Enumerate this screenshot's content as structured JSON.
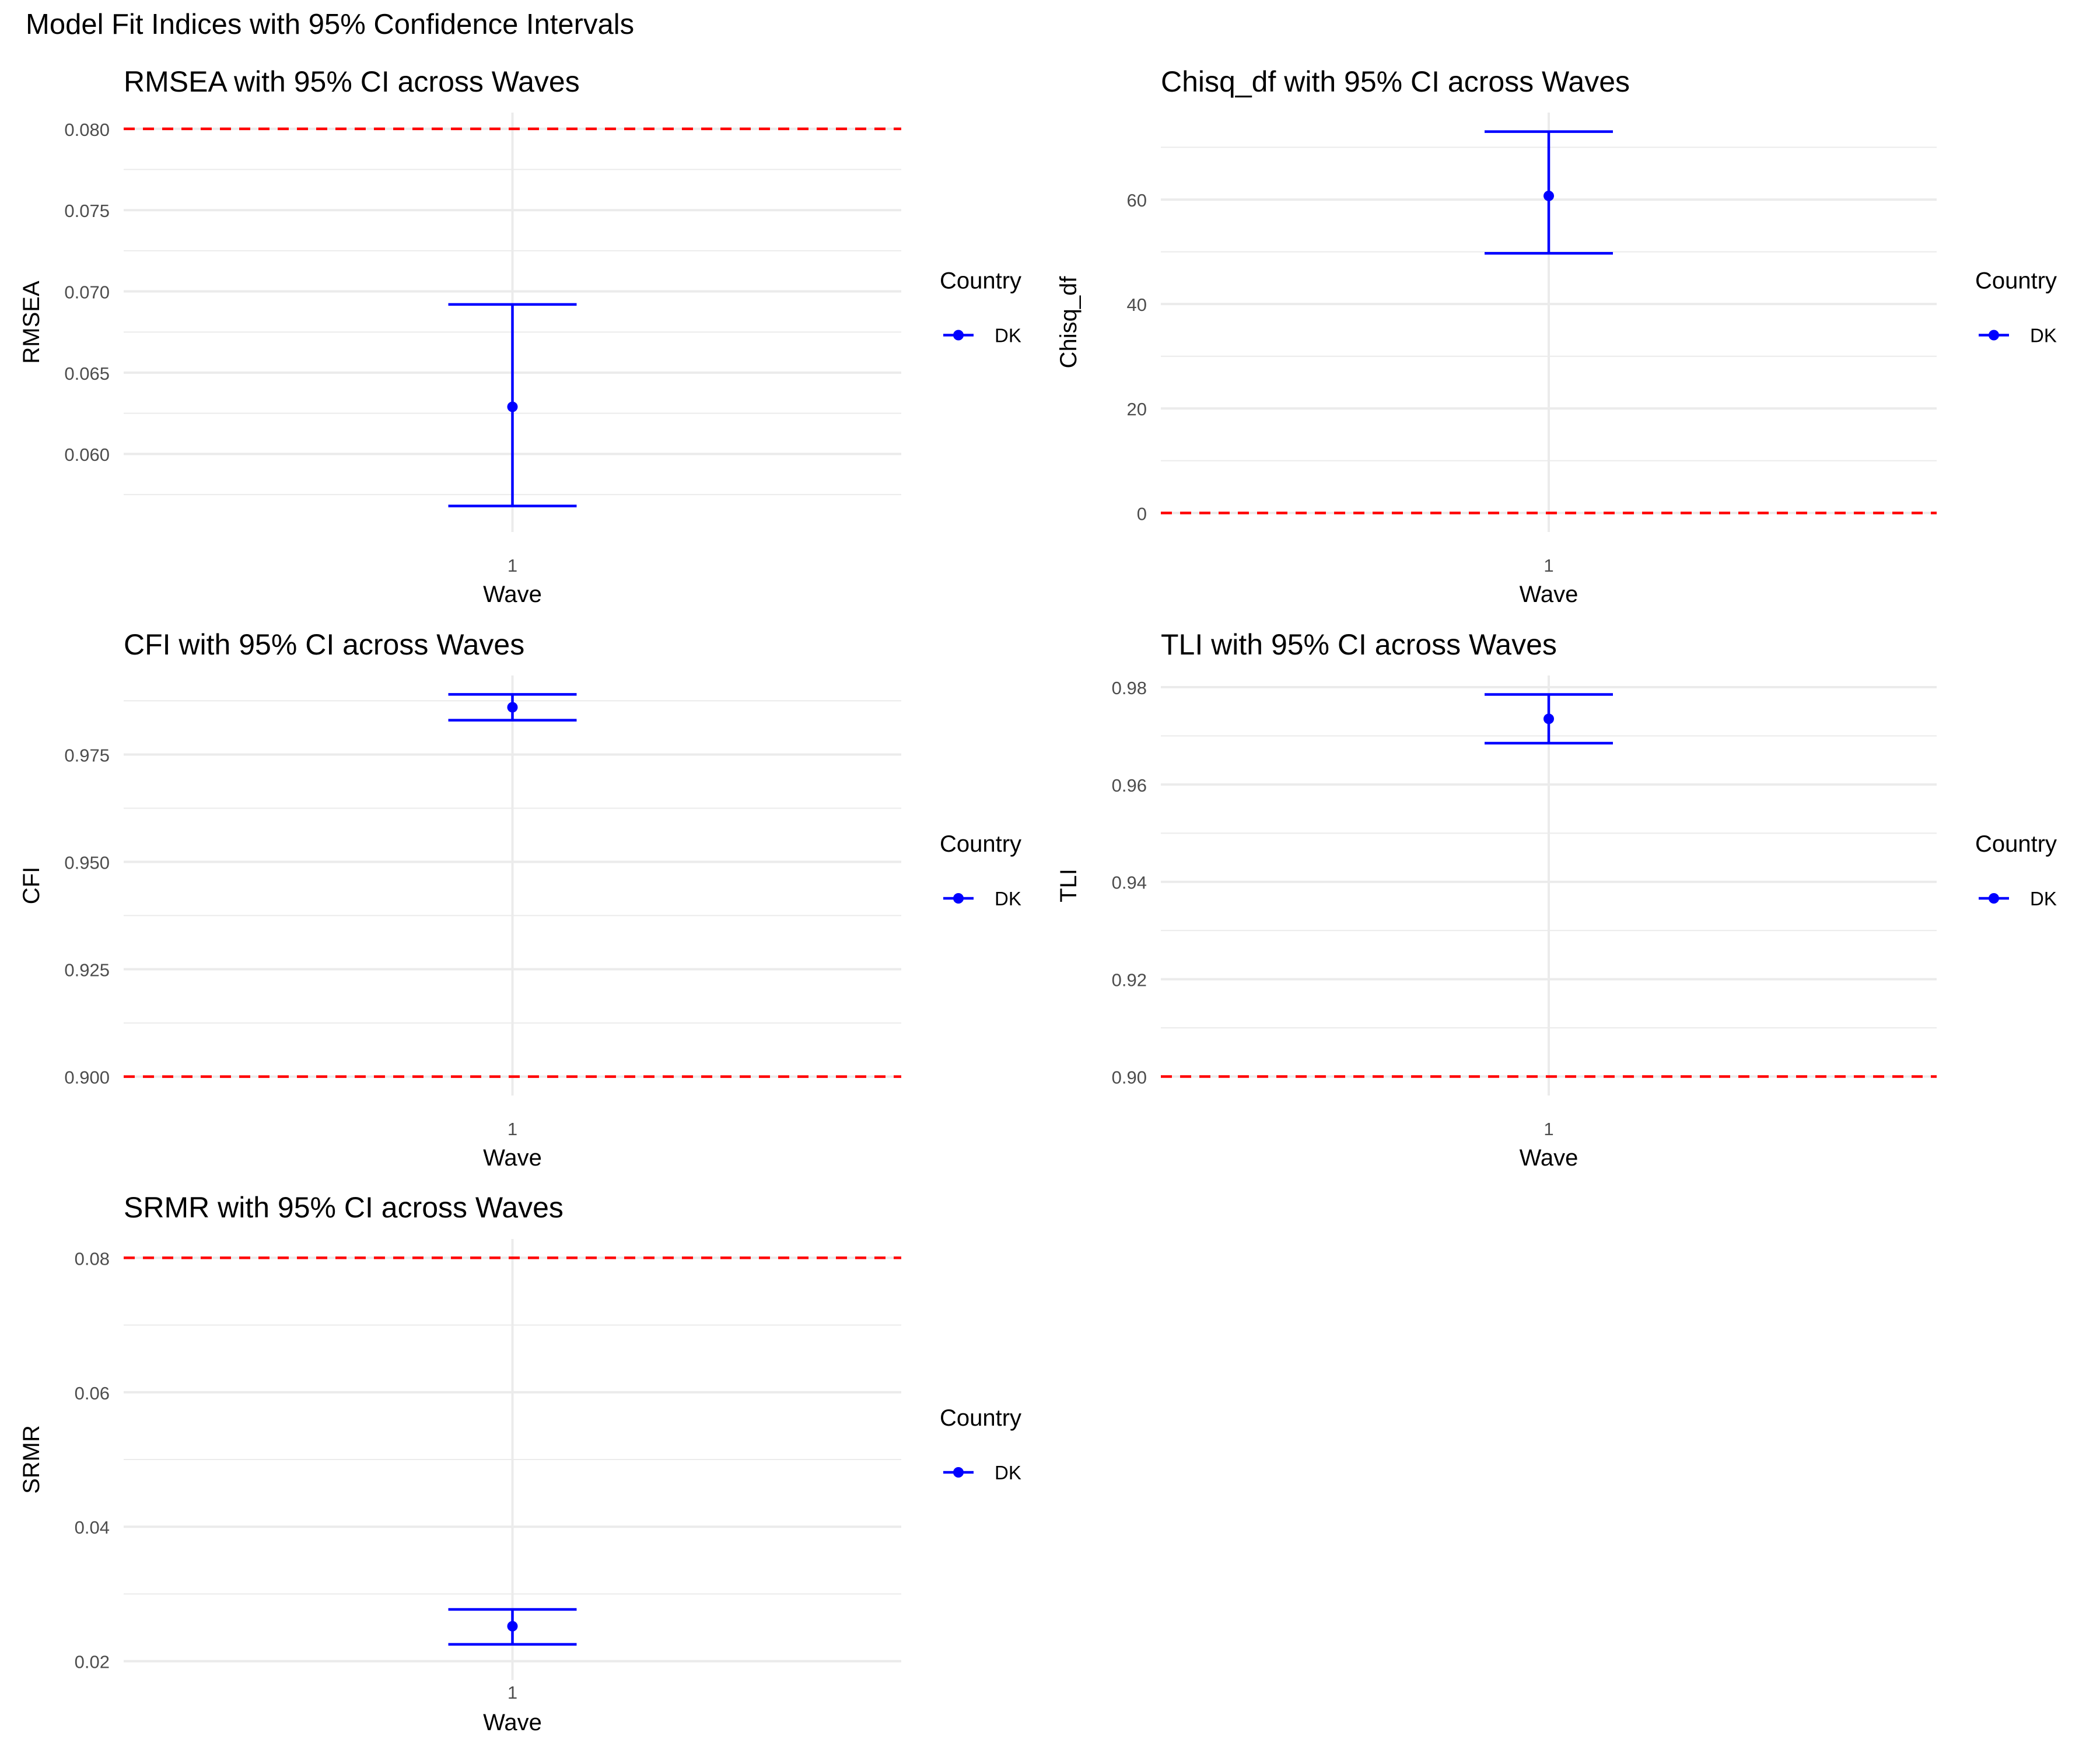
{
  "figure": {
    "title": "Model Fit Indices with 95% Confidence Intervals"
  },
  "colors": {
    "series": "#0000ff",
    "reference_line": "#ff0000",
    "grid": "#ebebeb",
    "text": "#000000",
    "tick_text": "#4d4d4d"
  },
  "chart_data": [
    {
      "id": "rmsea",
      "type": "scatter",
      "title": "RMSEA with 95% CI across Waves",
      "xlabel": "Wave",
      "ylabel": "RMSEA",
      "categories": [
        "1"
      ],
      "series": [
        {
          "name": "DK",
          "x": [
            "1"
          ],
          "y": [
            0.0629
          ],
          "ci_low": [
            0.0568
          ],
          "ci_high": [
            0.0692
          ]
        }
      ],
      "reference_line": 0.08,
      "ylim": [
        0.0552,
        0.081
      ],
      "yticks": [
        "0.060",
        "0.065",
        "0.070",
        "0.075",
        "0.080"
      ],
      "ytick_values": [
        0.06,
        0.065,
        0.07,
        0.075,
        0.08
      ],
      "legend": {
        "title": "Country",
        "entries": [
          "DK"
        ],
        "position": "right"
      },
      "grid": true
    },
    {
      "id": "chisq",
      "type": "scatter",
      "title": "Chisq_df with 95% CI across Waves",
      "xlabel": "Wave",
      "ylabel": "Chisq_df",
      "categories": [
        "1"
      ],
      "series": [
        {
          "name": "DK",
          "x": [
            "1"
          ],
          "y": [
            60.7
          ],
          "ci_low": [
            49.7
          ],
          "ci_high": [
            73.0
          ]
        }
      ],
      "reference_line": 0,
      "ylim": [
        -3.65,
        76.65
      ],
      "yticks": [
        "0",
        "20",
        "40",
        "60"
      ],
      "ytick_values": [
        0,
        20,
        40,
        60
      ],
      "legend": {
        "title": "Country",
        "entries": [
          "DK"
        ],
        "position": "right"
      },
      "grid": true
    },
    {
      "id": "cfi",
      "type": "scatter",
      "title": "CFI with 95% CI across Waves",
      "xlabel": "Wave",
      "ylabel": "CFI",
      "categories": [
        "1"
      ],
      "series": [
        {
          "name": "DK",
          "x": [
            "1"
          ],
          "y": [
            0.986
          ],
          "ci_low": [
            0.983
          ],
          "ci_high": [
            0.989
          ]
        }
      ],
      "reference_line": 0.9,
      "ylim": [
        0.8956,
        0.9934
      ],
      "yticks": [
        "0.900",
        "0.925",
        "0.950",
        "0.975"
      ],
      "ytick_values": [
        0.9,
        0.925,
        0.95,
        0.975
      ],
      "legend": {
        "title": "Country",
        "entries": [
          "DK"
        ],
        "position": "right"
      },
      "grid": true
    },
    {
      "id": "tli",
      "type": "scatter",
      "title": "TLI with 95% CI across Waves",
      "xlabel": "Wave",
      "ylabel": "TLI",
      "categories": [
        "1"
      ],
      "series": [
        {
          "name": "DK",
          "x": [
            "1"
          ],
          "y": [
            0.9735
          ],
          "ci_low": [
            0.9685
          ],
          "ci_high": [
            0.9785
          ]
        }
      ],
      "reference_line": 0.9,
      "ylim": [
        0.8961,
        0.9824
      ],
      "yticks": [
        "0.90",
        "0.92",
        "0.94",
        "0.96",
        "0.98"
      ],
      "ytick_values": [
        0.9,
        0.92,
        0.94,
        0.96,
        0.98
      ],
      "legend": {
        "title": "Country",
        "entries": [
          "DK"
        ],
        "position": "right"
      },
      "grid": true
    },
    {
      "id": "srmr",
      "type": "scatter",
      "title": "SRMR with 95% CI across Waves",
      "xlabel": "Wave",
      "ylabel": "SRMR",
      "categories": [
        "1"
      ],
      "series": [
        {
          "name": "DK",
          "x": [
            "1"
          ],
          "y": [
            0.0252
          ],
          "ci_low": [
            0.0225
          ],
          "ci_high": [
            0.0277
          ]
        }
      ],
      "reference_line": 0.08,
      "ylim": [
        0.0172,
        0.0828
      ],
      "yticks": [
        "0.02",
        "0.04",
        "0.06",
        "0.08"
      ],
      "ytick_values": [
        0.02,
        0.04,
        0.06,
        0.08
      ],
      "legend": {
        "title": "Country",
        "entries": [
          "DK"
        ],
        "position": "right"
      },
      "grid": true
    }
  ]
}
